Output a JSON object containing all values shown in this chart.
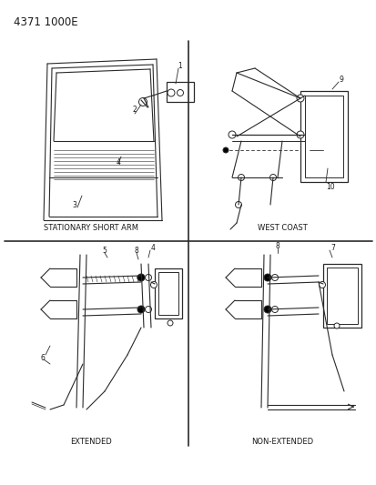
{
  "title": "4371 1000E",
  "bg_color": "#ffffff",
  "lc": "#2a2a2a",
  "tc": "#1a1a1a",
  "figsize": [
    4.14,
    5.33
  ],
  "dpi": 100,
  "labels": {
    "tl": "STATIONARY SHORT ARM",
    "tr": "WEST COAST",
    "bl": "EXTENDED",
    "br": "NON-EXTENDED"
  }
}
